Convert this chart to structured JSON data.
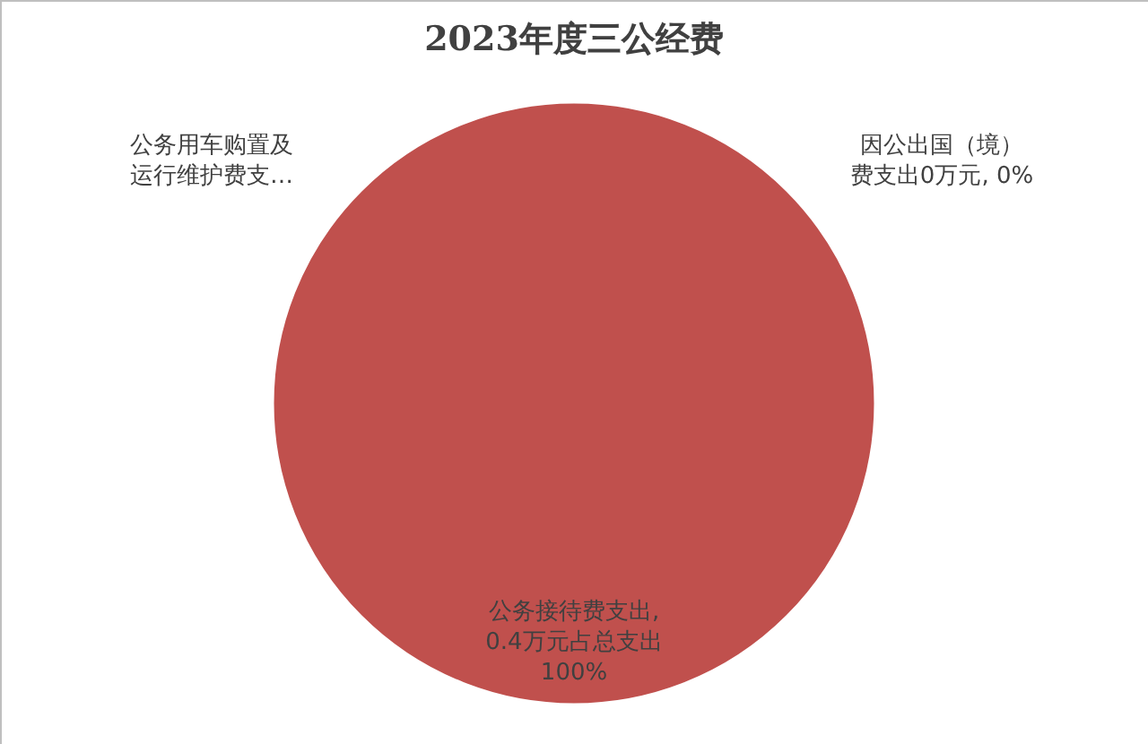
{
  "chart_data": {
    "type": "pie",
    "title": "2023年度三公经费",
    "categories": [
      "因公出国（境）费支出0万元, 0%",
      "公务用车购置及运行维护费支…",
      "公务接待费支出, 0.4万元占总支出100%"
    ],
    "values": [
      0,
      0,
      100
    ],
    "colors": [
      "#4f81bd",
      "#9bbb59",
      "#c0504d"
    ]
  }
}
